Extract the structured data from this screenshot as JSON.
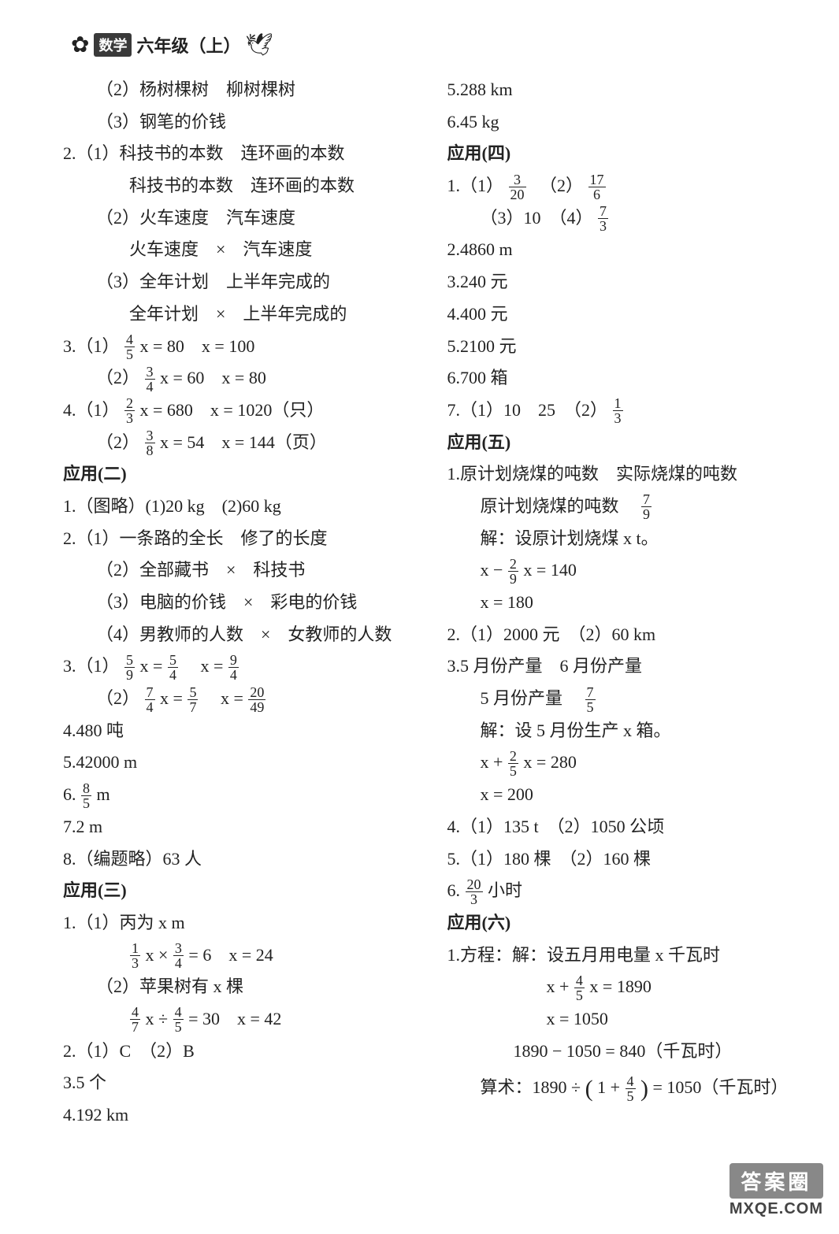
{
  "header": {
    "subject_badge": "数学",
    "grade": "六年级（上）"
  },
  "left": {
    "l01": "（2）杨树棵树　柳树棵树",
    "l02": "（3）钢笔的价钱",
    "l03": "2.（1）科技书的本数　连环画的本数",
    "l04": "科技书的本数　连环画的本数",
    "l05": "（2）火车速度　汽车速度",
    "l06": "火车速度　×　汽车速度",
    "l07": "（3）全年计划　上半年完成的",
    "l08": "全年计划　×　上半年完成的",
    "l09a": "3.（1）",
    "l09b": "x = 80　x = 100",
    "l10a": "（2）",
    "l10b": "x = 60　x = 80",
    "l11a": "4.（1）",
    "l11b": "x = 680　x = 1020（只）",
    "l12a": "（2）",
    "l12b": "x = 54　x = 144（页）",
    "l13": "应用(二)",
    "l14": "1.（图略）(1)20 kg　(2)60 kg",
    "l15": "2.（1）一条路的全长　修了的长度",
    "l16": "（2）全部藏书　×　科技书",
    "l17": "（3）电脑的价钱　×　彩电的价钱",
    "l18": "（4）男教师的人数　×　女教师的人数",
    "l19a": "3.（1）",
    "l19b": "x =",
    "l19c": "　x =",
    "l20a": "（2）",
    "l20b": "x =",
    "l20c": "　x =",
    "l21": "4.480 吨",
    "l22": "5.42000 m",
    "l23a": "6.",
    "l23b": " m",
    "l24": "7.2 m",
    "l25": "8.（编题略）63 人",
    "l26": "应用(三)",
    "l27": "1.（1）丙为 x m",
    "l28a": " x ×",
    "l28b": " = 6　x = 24",
    "l29": "（2）苹果树有 x 棵",
    "l30a": " x ÷",
    "l30b": " = 30　x = 42",
    "l31": "2.（1）C　（2）B",
    "l32": "3.5 个",
    "l33": "4.192 km"
  },
  "right": {
    "r01": "5.288 km",
    "r02": "6.45 kg",
    "r03": "应用(四)",
    "r04a": "1.（1）",
    "r04b": "　（2）",
    "r05a": "（3）10　（4）",
    "r06": "2.4860 m",
    "r07": "3.240 元",
    "r08": "4.400 元",
    "r09": "5.2100 元",
    "r10": "6.700 箱",
    "r11a": "7.（1）10　25　（2）",
    "r12": "应用(五)",
    "r13": "1.原计划烧煤的吨数　实际烧煤的吨数",
    "r14a": "原计划烧煤的吨数　",
    "r15": "解：设原计划烧煤 x t。",
    "r16a": "x −",
    "r16b": "x = 140",
    "r17": "x = 180",
    "r18": "2.（1）2000 元　（2）60 km",
    "r19": "3.5 月份产量　6 月份产量",
    "r20a": "5 月份产量　",
    "r21": "解：设 5 月份生产 x 箱。",
    "r22a": "x +",
    "r22b": "x = 280",
    "r23": "x = 200",
    "r24": "4.（1）135 t　（2）1050 公顷",
    "r25": "5.（1）180 棵　（2）160 棵",
    "r26a": "6.",
    "r26b": "小时",
    "r27": "应用(六)",
    "r28": "1.方程：解：设五月用电量 x 千瓦时",
    "r29a": "x +",
    "r29b": "x = 1890",
    "r30": "x = 1050",
    "r31": "1890 − 1050 = 840（千瓦时）",
    "r32a": "算术：1890 ÷ ",
    "r32b": "1 +",
    "r32c": " = 1050（千瓦时）"
  },
  "fractions": {
    "f45": {
      "n": "4",
      "d": "5"
    },
    "f34": {
      "n": "3",
      "d": "4"
    },
    "f23": {
      "n": "2",
      "d": "3"
    },
    "f38": {
      "n": "3",
      "d": "8"
    },
    "f59": {
      "n": "5",
      "d": "9"
    },
    "f54": {
      "n": "5",
      "d": "4"
    },
    "f94": {
      "n": "9",
      "d": "4"
    },
    "f74": {
      "n": "7",
      "d": "4"
    },
    "f57": {
      "n": "5",
      "d": "7"
    },
    "f2049": {
      "n": "20",
      "d": "49"
    },
    "f85": {
      "n": "8",
      "d": "5"
    },
    "f13": {
      "n": "1",
      "d": "3"
    },
    "f47": {
      "n": "4",
      "d": "7"
    },
    "f45b": {
      "n": "4",
      "d": "5"
    },
    "f320": {
      "n": "3",
      "d": "20"
    },
    "f176": {
      "n": "17",
      "d": "6"
    },
    "f73": {
      "n": "7",
      "d": "3"
    },
    "f13b": {
      "n": "1",
      "d": "3"
    },
    "f79": {
      "n": "7",
      "d": "9"
    },
    "f29": {
      "n": "2",
      "d": "9"
    },
    "f75": {
      "n": "7",
      "d": "5"
    },
    "f25": {
      "n": "2",
      "d": "5"
    },
    "f203": {
      "n": "20",
      "d": "3"
    },
    "f45c": {
      "n": "4",
      "d": "5"
    }
  },
  "watermark": {
    "top": "答案圈",
    "bottom": "MXQE.COM"
  }
}
